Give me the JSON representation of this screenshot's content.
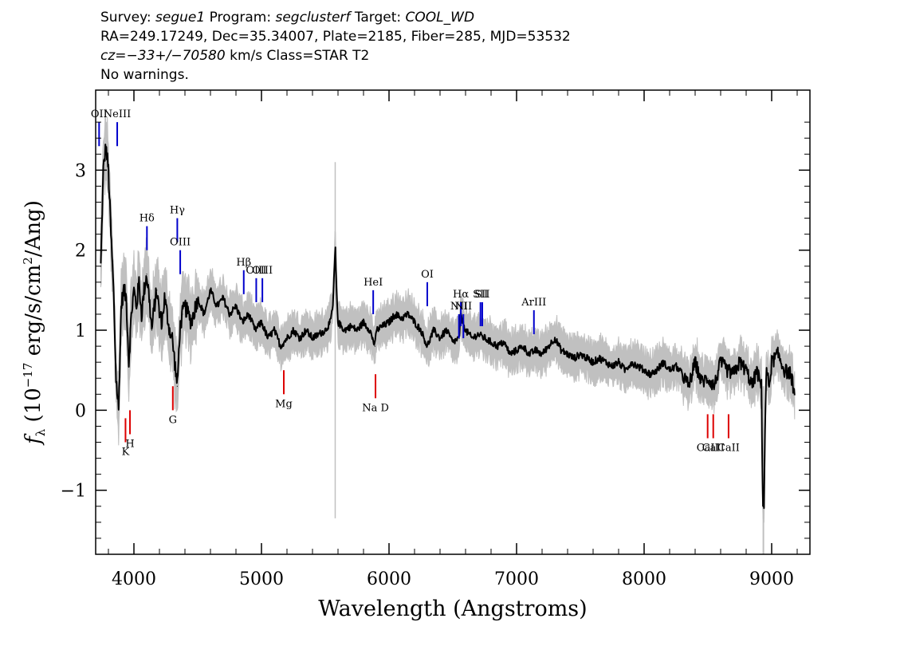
{
  "header": {
    "survey_label": "Survey:",
    "survey": "segue1",
    "program_label": "Program:",
    "program": "segclusterf",
    "target_label": "Target:",
    "target": "COOL_WD",
    "line2": "RA=249.17249, Dec=35.34007, Plate=2185, Fiber=285, MJD=53532",
    "cz_label": "cz=",
    "cz_value": "−33+/−70580",
    "cz_units_class": "km/s Class=STAR T2",
    "line4": "No warnings."
  },
  "colors": {
    "flux": "#000000",
    "error": "#c0c0c0",
    "emission_line": "#0000cc",
    "absorption_line": "#dd0000"
  },
  "chart_data": {
    "type": "line",
    "title": "",
    "xlabel": "Wavelength (Angstroms)",
    "ylabel": "f_λ (10^-17 erg/s/cm^2/Ang)",
    "xlim": [
      3700,
      9300
    ],
    "ylim": [
      -1.8,
      4.0
    ],
    "xticks": [
      {
        "value": 4000,
        "label": "4000"
      },
      {
        "value": 5000,
        "label": "5000"
      },
      {
        "value": 6000,
        "label": "6000"
      },
      {
        "value": 7000,
        "label": "7000"
      },
      {
        "value": 8000,
        "label": "8000"
      },
      {
        "value": 9000,
        "label": "9000"
      }
    ],
    "yticks": [
      {
        "value": -1,
        "label": "−1"
      },
      {
        "value": 0,
        "label": "0"
      },
      {
        "value": 1,
        "label": "1"
      },
      {
        "value": 2,
        "label": "2"
      },
      {
        "value": 3,
        "label": "3"
      }
    ],
    "grid": false,
    "series": [
      {
        "role": "flux",
        "x": [
          3740,
          3760,
          3780,
          3800,
          3820,
          3840,
          3860,
          3880,
          3900,
          3920,
          3940,
          3960,
          3980,
          4000,
          4020,
          4040,
          4060,
          4080,
          4100,
          4120,
          4140,
          4160,
          4180,
          4200,
          4220,
          4240,
          4260,
          4280,
          4300,
          4320,
          4340,
          4360,
          4380,
          4400,
          4450,
          4500,
          4550,
          4600,
          4650,
          4700,
          4750,
          4800,
          4850,
          4900,
          4950,
          5000,
          5050,
          5100,
          5150,
          5200,
          5250,
          5300,
          5350,
          5400,
          5450,
          5500,
          5540,
          5560,
          5575,
          5580,
          5590,
          5600,
          5650,
          5700,
          5750,
          5800,
          5850,
          5890,
          5900,
          5950,
          6000,
          6050,
          6100,
          6150,
          6200,
          6250,
          6300,
          6350,
          6400,
          6450,
          6500,
          6550,
          6562,
          6600,
          6650,
          6700,
          6750,
          6800,
          6850,
          6900,
          6950,
          7000,
          7050,
          7100,
          7150,
          7200,
          7250,
          7300,
          7350,
          7400,
          7450,
          7500,
          7550,
          7600,
          7650,
          7700,
          7750,
          7800,
          7850,
          7900,
          7950,
          8000,
          8050,
          8100,
          8150,
          8200,
          8250,
          8300,
          8350,
          8400,
          8450,
          8500,
          8550,
          8600,
          8650,
          8700,
          8750,
          8800,
          8850,
          8880,
          8900,
          8920,
          8930,
          8940,
          8950,
          8960,
          8980,
          9000,
          9050,
          9100,
          9150,
          9180
        ],
        "y": [
          1.8,
          3.0,
          3.3,
          3.0,
          2.2,
          1.5,
          0.4,
          0.0,
          1.3,
          1.5,
          1.4,
          0.6,
          1.2,
          1.5,
          1.3,
          1.6,
          1.2,
          1.5,
          1.7,
          1.4,
          1.0,
          1.3,
          1.5,
          1.2,
          1.1,
          1.4,
          1.2,
          1.0,
          0.9,
          0.6,
          0.3,
          1.0,
          1.2,
          1.3,
          1.1,
          1.4,
          1.2,
          1.5,
          1.3,
          1.4,
          1.2,
          1.3,
          1.1,
          1.2,
          1.0,
          1.1,
          0.9,
          1.0,
          0.8,
          0.9,
          1.0,
          0.9,
          1.0,
          0.9,
          0.95,
          1.0,
          1.1,
          1.3,
          1.9,
          2.0,
          1.4,
          1.1,
          1.0,
          1.05,
          1.0,
          1.1,
          1.0,
          0.8,
          1.0,
          1.05,
          1.1,
          1.2,
          1.15,
          1.2,
          1.1,
          1.0,
          0.8,
          1.0,
          0.9,
          1.0,
          0.85,
          0.9,
          1.2,
          1.0,
          0.9,
          0.95,
          0.9,
          0.85,
          0.8,
          0.85,
          0.7,
          0.75,
          0.8,
          0.7,
          0.75,
          0.7,
          0.8,
          0.9,
          0.75,
          0.7,
          0.65,
          0.7,
          0.65,
          0.6,
          0.65,
          0.6,
          0.55,
          0.6,
          0.5,
          0.6,
          0.55,
          0.5,
          0.45,
          0.5,
          0.6,
          0.5,
          0.55,
          0.45,
          0.3,
          0.6,
          0.35,
          0.4,
          0.3,
          0.6,
          0.5,
          0.45,
          0.6,
          0.5,
          0.3,
          0.5,
          0.4,
          0.3,
          -1.1,
          -1.2,
          0.0,
          0.5,
          0.3,
          0.6,
          0.7,
          0.5,
          0.45,
          0.2
        ]
      }
    ],
    "line_markers": [
      {
        "label": "OII",
        "x": 3727,
        "kind": "emission",
        "y_top": 3.6,
        "y_bottom": 3.3
      },
      {
        "label": "NeIII",
        "x": 3869,
        "kind": "emission",
        "y_top": 3.6,
        "y_bottom": 3.3
      },
      {
        "label": "Hδ",
        "x": 4102,
        "kind": "emission",
        "y_top": 2.3,
        "y_bottom": 2.0
      },
      {
        "label": "Hγ",
        "x": 4340,
        "kind": "emission",
        "y_top": 2.4,
        "y_bottom": 2.1
      },
      {
        "label": "OIII",
        "x": 4363,
        "kind": "emission",
        "y_top": 2.0,
        "y_bottom": 1.7
      },
      {
        "label": "Hβ",
        "x": 4861,
        "kind": "emission",
        "y_top": 1.75,
        "y_bottom": 1.45
      },
      {
        "label": "OIII",
        "x": 4959,
        "kind": "emission",
        "y_top": 1.65,
        "y_bottom": 1.35
      },
      {
        "label": "OIII",
        "x": 5007,
        "kind": "emission",
        "y_top": 1.65,
        "y_bottom": 1.35
      },
      {
        "label": "HeI",
        "x": 5876,
        "kind": "emission",
        "y_top": 1.5,
        "y_bottom": 1.2
      },
      {
        "label": "OI",
        "x": 6300,
        "kind": "emission",
        "y_top": 1.6,
        "y_bottom": 1.3
      },
      {
        "label": "NII",
        "x": 6548,
        "kind": "emission",
        "y_top": 1.2,
        "y_bottom": 0.9
      },
      {
        "label": "Hα",
        "x": 6563,
        "kind": "emission",
        "y_top": 1.35,
        "y_bottom": 1.05
      },
      {
        "label": "NII",
        "x": 6583,
        "kind": "emission",
        "y_top": 1.2,
        "y_bottom": 0.9
      },
      {
        "label": "SII",
        "x": 6717,
        "kind": "emission",
        "y_top": 1.35,
        "y_bottom": 1.05
      },
      {
        "label": "SII",
        "x": 6731,
        "kind": "emission",
        "y_top": 1.35,
        "y_bottom": 1.05
      },
      {
        "label": "ArIII",
        "x": 7136,
        "kind": "emission",
        "y_top": 1.25,
        "y_bottom": 0.95
      },
      {
        "label": "K",
        "x": 3934,
        "kind": "absorption",
        "y_top": -0.1,
        "y_bottom": -0.4
      },
      {
        "label": "H",
        "x": 3969,
        "kind": "absorption",
        "y_top": 0.0,
        "y_bottom": -0.3
      },
      {
        "label": "G",
        "x": 4305,
        "kind": "absorption",
        "y_top": 0.3,
        "y_bottom": 0.0
      },
      {
        "label": "Mg",
        "x": 5175,
        "kind": "absorption",
        "y_top": 0.5,
        "y_bottom": 0.2
      },
      {
        "label": "Na D",
        "x": 5894,
        "kind": "absorption",
        "y_top": 0.45,
        "y_bottom": 0.15
      },
      {
        "label": "CaII",
        "x": 8498,
        "kind": "absorption",
        "y_top": -0.05,
        "y_bottom": -0.35
      },
      {
        "label": "CaII",
        "x": 8542,
        "kind": "absorption",
        "y_top": -0.05,
        "y_bottom": -0.35
      },
      {
        "label": "CaII",
        "x": 8662,
        "kind": "absorption",
        "y_top": -0.05,
        "y_bottom": -0.35
      }
    ]
  }
}
